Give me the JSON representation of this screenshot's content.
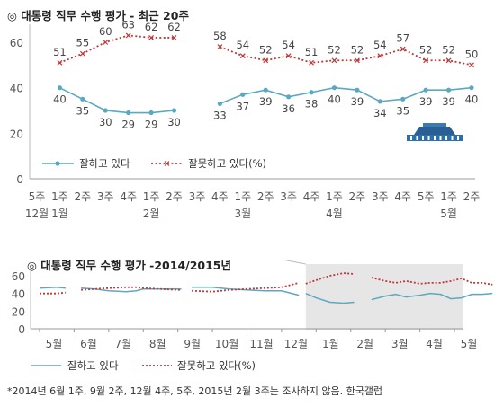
{
  "footnote": "*2014년 6월 1주, 9월 2주, 12월 4주, 5주, 2015년 2월 3주는 조사하지 않음. 한국갤럽",
  "chart_data": [
    {
      "type": "line",
      "title": "◎  대통령 직무 수행 평가 - 최근 20주",
      "ylim": [
        0,
        60
      ],
      "yticks": [
        "0",
        "20",
        "40",
        "60"
      ],
      "x_week": [
        "5주",
        "1주",
        "2주",
        "3주",
        "4주",
        "1주",
        "2주",
        "3주",
        "4주",
        "1주",
        "2주",
        "3주",
        "4주",
        "1주",
        "2주",
        "3주",
        "4주",
        "5주",
        "1주",
        "2주"
      ],
      "x_month": [
        "12월",
        "1월",
        "",
        "",
        "",
        "2월",
        "",
        "",
        "",
        "3월",
        "",
        "",
        "",
        "4월",
        "",
        "",
        "",
        "",
        "5월",
        ""
      ],
      "series": [
        {
          "name": "잘하고 있다",
          "color": "#5aa9c0",
          "style": "solid",
          "values": [
            null,
            40,
            35,
            30,
            29,
            29,
            30,
            null,
            33,
            37,
            39,
            36,
            38,
            40,
            39,
            34,
            35,
            39,
            39,
            40
          ]
        },
        {
          "name": "잘못하고 있다(%)",
          "color": "#c0383a",
          "style": "dotted",
          "values": [
            null,
            51,
            55,
            60,
            63,
            62,
            62,
            null,
            58,
            54,
            52,
            54,
            51,
            52,
            52,
            54,
            57,
            52,
            52,
            50
          ]
        }
      ],
      "legend": "bottom-left",
      "grid": false
    },
    {
      "type": "line",
      "title": "◎  대통령 직무 수행 평가 -2014/2015년",
      "ylim": [
        0,
        60
      ],
      "yticks": [
        "0",
        "20",
        "40",
        "60"
      ],
      "x_month": [
        "5월",
        "6월",
        "7월",
        "8월",
        "9월",
        "10월",
        "11월",
        "12월",
        "1월",
        "2월",
        "3월",
        "4월",
        "5월"
      ],
      "series": [
        {
          "name": "잘하고 있다",
          "color": "#5aa9c0",
          "style": "solid",
          "segments": [
            [
              [
                0,
                46
              ],
              [
                0.5,
                47
              ],
              [
                0.75,
                46
              ]
            ],
            [
              [
                1.2,
                46
              ],
              [
                1.6,
                45
              ],
              [
                2,
                43
              ],
              [
                2.5,
                42
              ],
              [
                2.8,
                43
              ],
              [
                3,
                45
              ],
              [
                3.5,
                45
              ],
              [
                4,
                45
              ],
              [
                4.1,
                45
              ]
            ],
            [
              [
                4.4,
                47
              ],
              [
                5,
                47
              ],
              [
                5.5,
                45
              ],
              [
                6,
                44
              ],
              [
                6.5,
                43
              ],
              [
                7,
                43
              ],
              [
                7.5,
                38
              ]
            ],
            [
              [
                7.7,
                40
              ],
              [
                8,
                35
              ],
              [
                8.4,
                30
              ],
              [
                8.8,
                29
              ],
              [
                9.1,
                30
              ]
            ],
            [
              [
                9.6,
                33
              ],
              [
                10,
                37
              ],
              [
                10.3,
                39
              ],
              [
                10.6,
                36
              ],
              [
                11,
                38
              ],
              [
                11.3,
                40
              ],
              [
                11.6,
                39
              ],
              [
                11.9,
                34
              ],
              [
                12.2,
                35
              ],
              [
                12.5,
                39
              ],
              [
                12.8,
                39
              ],
              [
                13.1,
                40
              ]
            ]
          ]
        },
        {
          "name": "잘못하고 있다(%)",
          "color": "#c0383a",
          "style": "dotted",
          "segments": [
            [
              [
                0,
                40
              ],
              [
                0.5,
                40
              ],
              [
                0.75,
                41
              ]
            ],
            [
              [
                1.2,
                44
              ],
              [
                1.6,
                45
              ],
              [
                2,
                46
              ],
              [
                2.5,
                47
              ],
              [
                2.8,
                47
              ],
              [
                3,
                46
              ],
              [
                3.5,
                45
              ],
              [
                4,
                44
              ],
              [
                4.1,
                44
              ]
            ],
            [
              [
                4.4,
                43
              ],
              [
                5,
                42
              ],
              [
                5.5,
                44
              ],
              [
                6,
                45
              ],
              [
                6.5,
                46
              ],
              [
                7,
                47
              ],
              [
                7.5,
                52
              ]
            ],
            [
              [
                7.7,
                51
              ],
              [
                8,
                55
              ],
              [
                8.4,
                60
              ],
              [
                8.8,
                63
              ],
              [
                9.1,
                62
              ]
            ],
            [
              [
                9.6,
                58
              ],
              [
                10,
                54
              ],
              [
                10.3,
                52
              ],
              [
                10.6,
                54
              ],
              [
                11,
                51
              ],
              [
                11.3,
                52
              ],
              [
                11.6,
                52
              ],
              [
                11.9,
                54
              ],
              [
                12.2,
                57
              ],
              [
                12.5,
                52
              ],
              [
                12.8,
                52
              ],
              [
                13.1,
                50
              ]
            ]
          ]
        }
      ],
      "legend": "bottom-center",
      "grid": false
    }
  ]
}
